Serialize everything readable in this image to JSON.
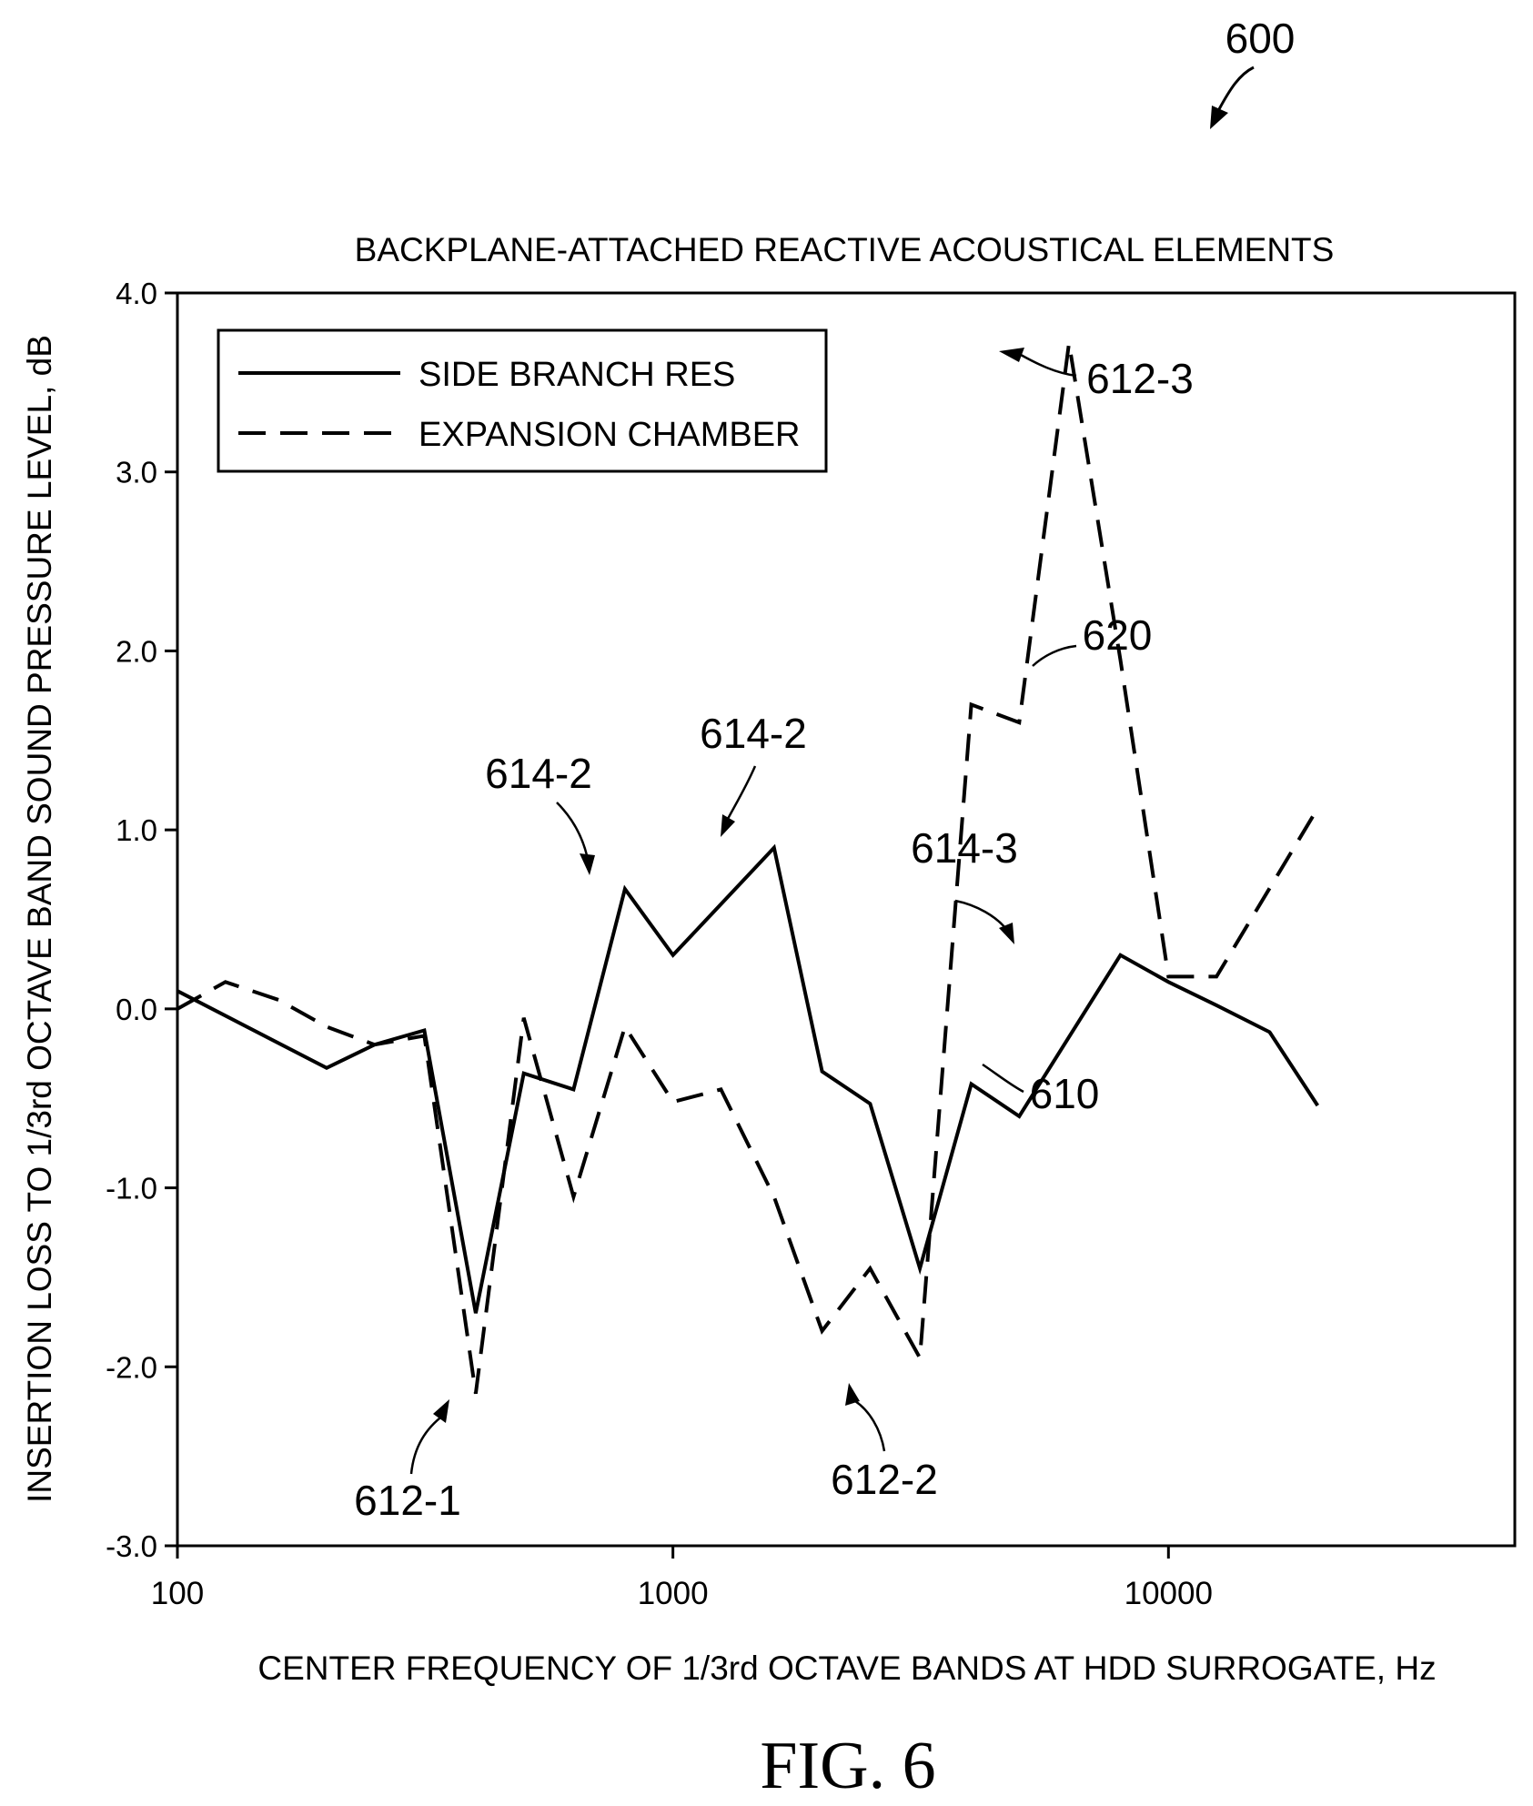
{
  "figure_ref": "600",
  "figure_caption": "FIG. 6",
  "chart_data": {
    "type": "line",
    "title": "BACKPLANE-ATTACHED REACTIVE ACOUSTICAL ELEMENTS",
    "xlabel": "CENTER FREQUENCY OF 1/3rd OCTAVE BANDS AT HDD SURROGATE, Hz",
    "ylabel": "INSERTION LOSS TO 1/3rd OCTAVE BAND SOUND PRESSURE LEVEL, dB",
    "x_scale": "log",
    "xlim": [
      100,
      50000
    ],
    "ylim": [
      -3.0,
      4.0
    ],
    "x_ticks": [
      {
        "value": 100,
        "label": "100"
      },
      {
        "value": 1000,
        "label": "1000"
      },
      {
        "value": 10000,
        "label": "10000"
      }
    ],
    "y_ticks": [
      {
        "value": 4.0,
        "label": "4.0"
      },
      {
        "value": 3.0,
        "label": "3.0"
      },
      {
        "value": 2.0,
        "label": "2.0"
      },
      {
        "value": 1.0,
        "label": "1.0"
      },
      {
        "value": 0.0,
        "label": "0.0"
      },
      {
        "value": -1.0,
        "label": "-1.0"
      },
      {
        "value": -2.0,
        "label": "-2.0"
      },
      {
        "value": -3.0,
        "label": "-3.0"
      }
    ],
    "grid": false,
    "legend_position": "top-left",
    "series": [
      {
        "name": "SIDE BRANCH RES",
        "style": "solid",
        "x": [
          100,
          200,
          250,
          315,
          400,
          500,
          630,
          800,
          1000,
          1600,
          2000,
          2500,
          3150,
          4000,
          5000,
          8000,
          10000,
          12500,
          16000,
          20000
        ],
        "y": [
          0.1,
          -0.33,
          -0.2,
          -0.12,
          -1.7,
          -0.36,
          -0.45,
          0.67,
          0.3,
          0.9,
          -0.35,
          -0.53,
          -1.45,
          -0.42,
          -0.6,
          0.3,
          0.15,
          0.02,
          -0.13,
          -0.54
        ]
      },
      {
        "name": "EXPANSION CHAMBER",
        "style": "dashed",
        "x": [
          100,
          125,
          160,
          200,
          250,
          315,
          400,
          500,
          630,
          800,
          1000,
          1250,
          1600,
          2000,
          2500,
          3150,
          4000,
          5000,
          6300,
          8000,
          10000,
          12500,
          20000
        ],
        "y": [
          0.0,
          0.15,
          0.05,
          -0.1,
          -0.2,
          -0.15,
          -2.15,
          -0.05,
          -1.05,
          -0.1,
          -0.52,
          -0.45,
          -1.05,
          -1.8,
          -1.45,
          -1.95,
          1.7,
          1.6,
          3.72,
          1.95,
          0.18,
          0.18,
          1.12
        ]
      }
    ],
    "annotations": [
      {
        "label": "612-1",
        "x": 400,
        "y": -2.15
      },
      {
        "label": "612-2",
        "x": 3150,
        "y": -1.95
      },
      {
        "label": "612-3",
        "x": 6300,
        "y": 3.72
      },
      {
        "label": "614-2",
        "x": 800,
        "y": 0.67
      },
      {
        "label": "614-2",
        "x": 1600,
        "y": 0.9
      },
      {
        "label": "614-3",
        "x": 8000,
        "y": 0.3
      },
      {
        "label": "610",
        "x": 6500,
        "y": -0.25
      },
      {
        "label": "620",
        "x": 8000,
        "y": 2.05
      }
    ]
  }
}
